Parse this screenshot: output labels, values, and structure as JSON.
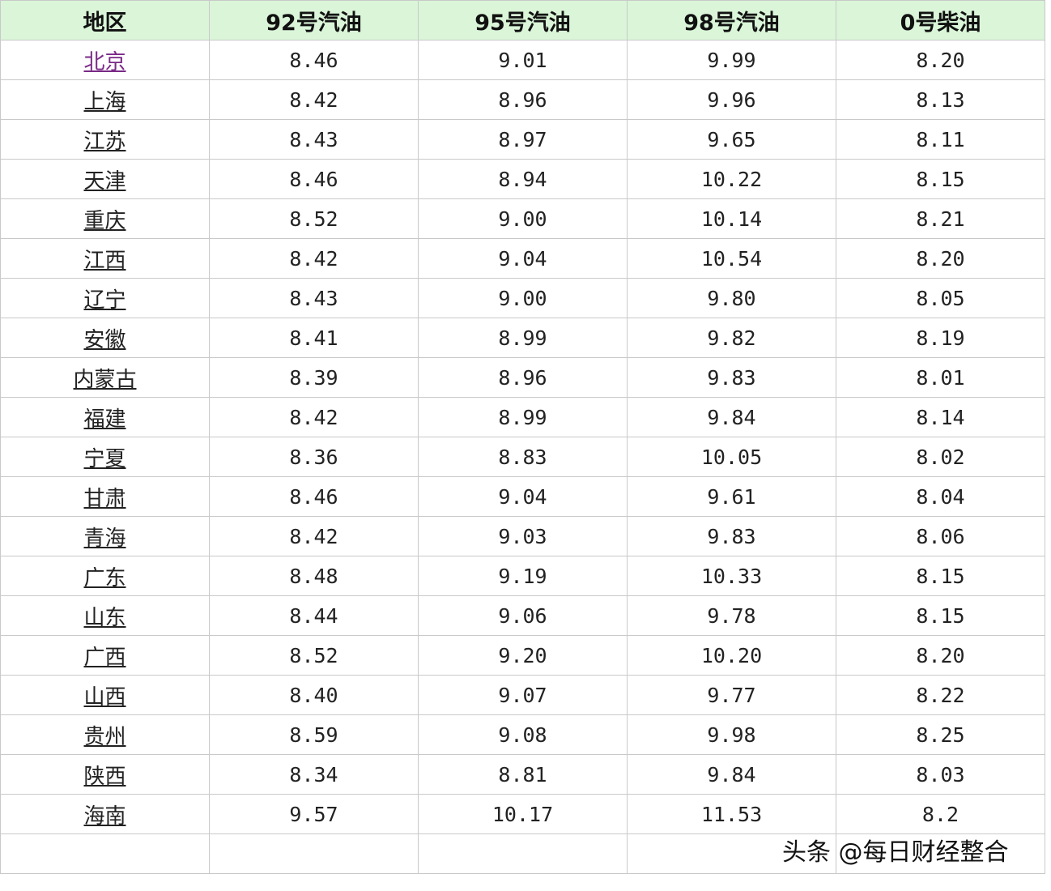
{
  "headers": [
    "地区",
    "92号汽油",
    "95号汽油",
    "98号汽油",
    "0号柴油"
  ],
  "rows": [
    [
      "北京",
      "8.46",
      "9.01",
      "9.99",
      "8.20"
    ],
    [
      "上海",
      "8.42",
      "8.96",
      "9.96",
      "8.13"
    ],
    [
      "江苏",
      "8.43",
      "8.97",
      "9.65",
      "8.11"
    ],
    [
      "天津",
      "8.46",
      "8.94",
      "10.22",
      "8.15"
    ],
    [
      "重庆",
      "8.52",
      "9.00",
      "10.14",
      "8.21"
    ],
    [
      "江西",
      "8.42",
      "9.04",
      "10.54",
      "8.20"
    ],
    [
      "辽宁",
      "8.43",
      "9.00",
      "9.80",
      "8.05"
    ],
    [
      "安徽",
      "8.41",
      "8.99",
      "9.82",
      "8.19"
    ],
    [
      "内蒙古",
      "8.39",
      "8.96",
      "9.83",
      "8.01"
    ],
    [
      "福建",
      "8.42",
      "8.99",
      "9.84",
      "8.14"
    ],
    [
      "宁夏",
      "8.36",
      "8.83",
      "10.05",
      "8.02"
    ],
    [
      "甘肃",
      "8.46",
      "9.04",
      "9.61",
      "8.04"
    ],
    [
      "青海",
      "8.42",
      "9.03",
      "9.83",
      "8.06"
    ],
    [
      "广东",
      "8.48",
      "9.19",
      "10.33",
      "8.15"
    ],
    [
      "山东",
      "8.44",
      "9.06",
      "9.78",
      "8.15"
    ],
    [
      "广西",
      "8.52",
      "9.20",
      "10.20",
      "8.20"
    ],
    [
      "山西",
      "8.40",
      "9.07",
      "9.77",
      "8.22"
    ],
    [
      "贵州",
      "8.59",
      "9.08",
      "9.98",
      "8.25"
    ],
    [
      "陕西",
      "8.34",
      "8.81",
      "9.84",
      "8.03"
    ],
    [
      "海南",
      "9.57",
      "10.17",
      "11.53",
      "8.2"
    ]
  ],
  "watermark": "头条 @每日财经整合"
}
